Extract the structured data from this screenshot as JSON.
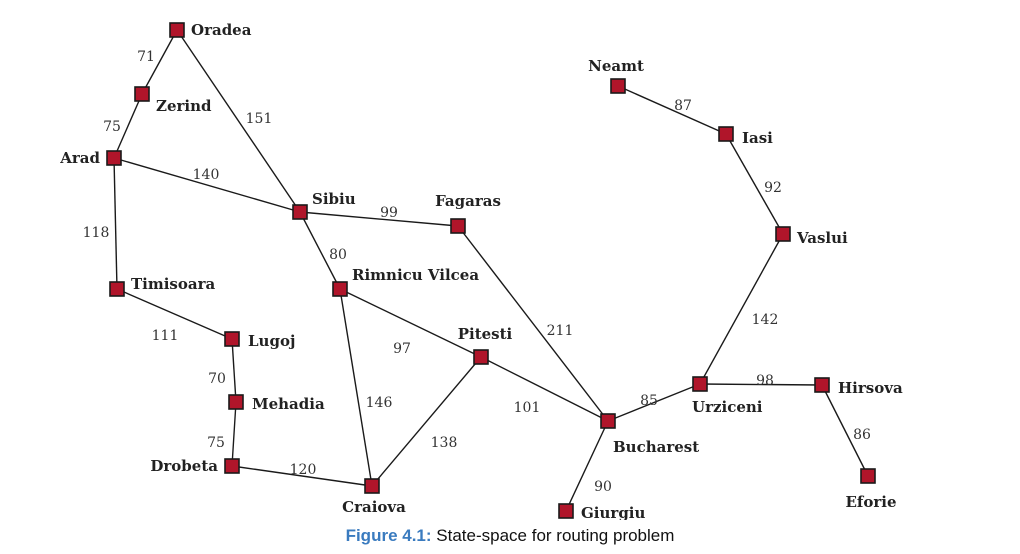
{
  "colors": {
    "node_fill": "#b0152a",
    "node_stroke": "#1a1a1a",
    "edge": "#1a1a1a",
    "caption_label": "#3a7bbf"
  },
  "caption": {
    "label": "Figure 4.1:",
    "text": "State-space for routing problem"
  },
  "cities": [
    {
      "id": "oradea",
      "name": "Oradea"
    },
    {
      "id": "zerind",
      "name": "Zerind"
    },
    {
      "id": "arad",
      "name": "Arad"
    },
    {
      "id": "timisoara",
      "name": "Timisoara"
    },
    {
      "id": "lugoj",
      "name": "Lugoj"
    },
    {
      "id": "mehadia",
      "name": "Mehadia"
    },
    {
      "id": "drobeta",
      "name": "Drobeta"
    },
    {
      "id": "craiova",
      "name": "Craiova"
    },
    {
      "id": "sibiu",
      "name": "Sibiu"
    },
    {
      "id": "rimnicu",
      "name": "Rimnicu Vilcea"
    },
    {
      "id": "fagaras",
      "name": "Fagaras"
    },
    {
      "id": "pitesti",
      "name": "Pitesti"
    },
    {
      "id": "bucharest",
      "name": "Bucharest"
    },
    {
      "id": "giurgiu",
      "name": "Giurgiu"
    },
    {
      "id": "urziceni",
      "name": "Urziceni"
    },
    {
      "id": "hirsova",
      "name": "Hirsova"
    },
    {
      "id": "eforie",
      "name": "Eforie"
    },
    {
      "id": "vaslui",
      "name": "Vaslui"
    },
    {
      "id": "iasi",
      "name": "Iasi"
    },
    {
      "id": "neamt",
      "name": "Neamt"
    }
  ],
  "roads": [
    {
      "from": "oradea",
      "to": "zerind",
      "distance": "71"
    },
    {
      "from": "zerind",
      "to": "arad",
      "distance": "75"
    },
    {
      "from": "oradea",
      "to": "sibiu",
      "distance": "151"
    },
    {
      "from": "arad",
      "to": "sibiu",
      "distance": "140"
    },
    {
      "from": "arad",
      "to": "timisoara",
      "distance": "118"
    },
    {
      "from": "timisoara",
      "to": "lugoj",
      "distance": "111"
    },
    {
      "from": "lugoj",
      "to": "mehadia",
      "distance": "70"
    },
    {
      "from": "mehadia",
      "to": "drobeta",
      "distance": "75"
    },
    {
      "from": "drobeta",
      "to": "craiova",
      "distance": "120"
    },
    {
      "from": "sibiu",
      "to": "fagaras",
      "distance": "99"
    },
    {
      "from": "sibiu",
      "to": "rimnicu",
      "distance": "80"
    },
    {
      "from": "rimnicu",
      "to": "pitesti",
      "distance": "97"
    },
    {
      "from": "rimnicu",
      "to": "craiova",
      "distance": "146"
    },
    {
      "from": "craiova",
      "to": "pitesti",
      "distance": "138"
    },
    {
      "from": "pitesti",
      "to": "bucharest",
      "distance": "101"
    },
    {
      "from": "fagaras",
      "to": "bucharest",
      "distance": "211"
    },
    {
      "from": "bucharest",
      "to": "giurgiu",
      "distance": "90"
    },
    {
      "from": "bucharest",
      "to": "urziceni",
      "distance": "85"
    },
    {
      "from": "urziceni",
      "to": "hirsova",
      "distance": "98"
    },
    {
      "from": "hirsova",
      "to": "eforie",
      "distance": "86"
    },
    {
      "from": "urziceni",
      "to": "vaslui",
      "distance": "142"
    },
    {
      "from": "vaslui",
      "to": "iasi",
      "distance": "92"
    },
    {
      "from": "iasi",
      "to": "neamt",
      "distance": "87"
    }
  ]
}
